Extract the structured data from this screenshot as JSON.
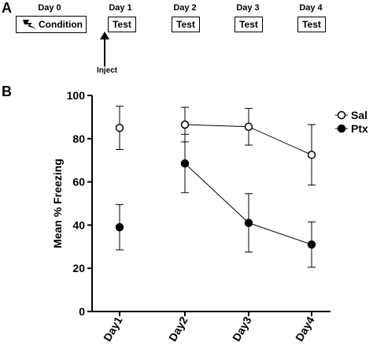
{
  "panel_a": {
    "letter": "A",
    "timeline": [
      {
        "day": "Day 0",
        "box": "Condition",
        "icon": "lightning-bolt-icon"
      },
      {
        "day": "Day 1",
        "box": "Test"
      },
      {
        "day": "Day 2",
        "box": "Test"
      },
      {
        "day": "Day 3",
        "box": "Test"
      },
      {
        "day": "Day 4",
        "box": "Test"
      }
    ],
    "inject_label": "Inject"
  },
  "panel_b": {
    "letter": "B"
  },
  "chart_data": {
    "type": "line",
    "title": "",
    "xlabel": "",
    "ylabel": "Mean % Freezing",
    "categories": [
      "Day1",
      "Day2",
      "Day3",
      "Day4"
    ],
    "ylim": [
      0,
      100
    ],
    "yticks": [
      0,
      20,
      40,
      60,
      80,
      100
    ],
    "grid": false,
    "legend_position": "top-right",
    "series": [
      {
        "name": "Sal",
        "marker": "open-circle",
        "values": [
          85,
          86.5,
          85.5,
          72.5
        ],
        "errors": [
          10,
          8,
          8.5,
          14
        ],
        "connected_from_index": 1
      },
      {
        "name": "Ptx",
        "marker": "filled-circle",
        "values": [
          39,
          68.5,
          41,
          31
        ],
        "errors": [
          10.5,
          13.5,
          13.5,
          10.5
        ],
        "connected_from_index": 1
      }
    ]
  }
}
